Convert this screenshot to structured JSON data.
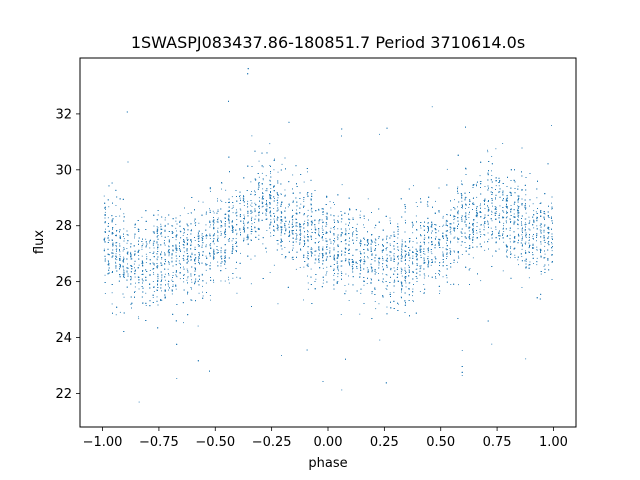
{
  "chart_data": {
    "type": "scatter",
    "title": "1SWASPJ083437.86-180851.7 Period 3710614.0s",
    "xlabel": "phase",
    "ylabel": "flux",
    "xlim": [
      -1.1,
      1.1
    ],
    "ylim": [
      20.8,
      34.0
    ],
    "xticks": [
      -1.0,
      -0.75,
      -0.5,
      -0.25,
      0.0,
      0.25,
      0.5,
      0.75,
      1.0
    ],
    "xtick_labels": [
      "−1.00",
      "−0.75",
      "−0.50",
      "−0.25",
      "0.00",
      "0.25",
      "0.50",
      "0.75",
      "1.00"
    ],
    "yticks": [
      22,
      24,
      26,
      28,
      30,
      32
    ],
    "ytick_labels": [
      "22",
      "24",
      "26",
      "28",
      "30",
      "32"
    ],
    "grid": false,
    "marker_color": "#1f77b4",
    "profile": {
      "phase": [
        -1.0,
        -0.9,
        -0.8,
        -0.75,
        -0.7,
        -0.6,
        -0.5,
        -0.4,
        -0.3,
        -0.25,
        -0.2,
        -0.1,
        0.0,
        0.1,
        0.2,
        0.25,
        0.3,
        0.4,
        0.5,
        0.6,
        0.7,
        0.75,
        0.8,
        0.9,
        1.0
      ],
      "flux": [
        27.5,
        26.9,
        26.6,
        26.8,
        26.9,
        27.0,
        27.4,
        28.0,
        28.6,
        28.6,
        28.3,
        27.8,
        27.4,
        27.0,
        26.8,
        26.7,
        26.8,
        27.0,
        27.5,
        28.0,
        28.6,
        28.6,
        28.3,
        27.8,
        27.5
      ]
    },
    "scatter_sd": 0.8,
    "n_points": 9000
  }
}
